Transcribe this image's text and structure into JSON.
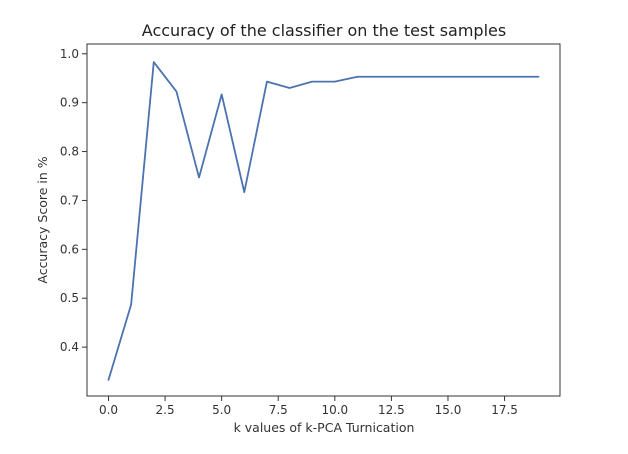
{
  "chart_data": {
    "type": "line",
    "title": "Accuracy of the classifier on the test samples",
    "xlabel": "k values of k-PCA Turnication",
    "ylabel": "Accuracy Score in %",
    "xlim": [
      -0.95,
      19.95
    ],
    "ylim": [
      0.3,
      1.02
    ],
    "xticks": [
      0.0,
      2.5,
      5.0,
      7.5,
      10.0,
      12.5,
      15.0,
      17.5
    ],
    "xtick_labels": [
      "0.0",
      "2.5",
      "5.0",
      "7.5",
      "10.0",
      "12.5",
      "15.0",
      "17.5"
    ],
    "yticks": [
      0.4,
      0.5,
      0.6,
      0.7,
      0.8,
      0.9,
      1.0
    ],
    "ytick_labels": [
      "0.4",
      "0.5",
      "0.6",
      "0.7",
      "0.8",
      "0.9",
      "1.0"
    ],
    "grid": false,
    "series": [
      {
        "color": "#4c72b0",
        "x": [
          0,
          1,
          2,
          3,
          4,
          5,
          6,
          7,
          8,
          9,
          10,
          11,
          12,
          13,
          14,
          15,
          16,
          17,
          18,
          19
        ],
        "y": [
          0.333,
          0.487,
          0.983,
          0.923,
          0.747,
          0.917,
          0.717,
          0.943,
          0.93,
          0.943,
          0.943,
          0.953,
          0.953,
          0.953,
          0.953,
          0.953,
          0.953,
          0.953,
          0.953,
          0.953
        ]
      }
    ]
  }
}
